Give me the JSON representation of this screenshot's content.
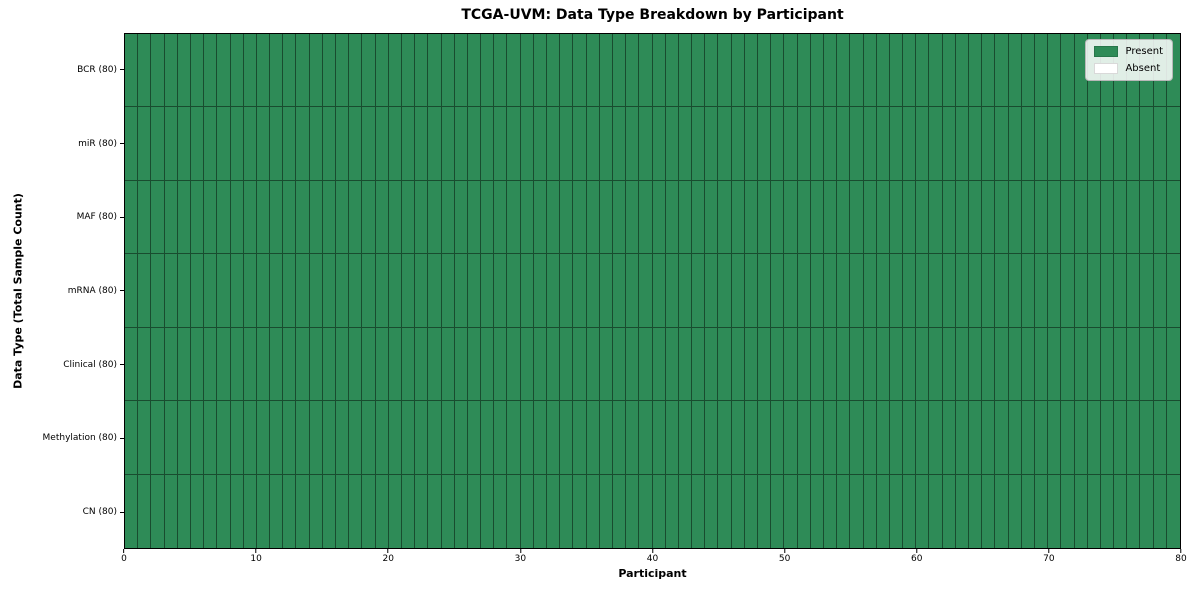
{
  "chart_data": {
    "type": "heatmap",
    "title": "TCGA-UVM: Data Type Breakdown by Participant",
    "xlabel": "Participant",
    "ylabel": "Data Type (Total Sample Count)",
    "xlim": [
      0,
      80
    ],
    "x_ticks": [
      0,
      10,
      20,
      30,
      40,
      50,
      60,
      70,
      80
    ],
    "n_participants": 80,
    "rows": [
      {
        "label": "BCR (80)",
        "present_count": 80
      },
      {
        "label": "miR (80)",
        "present_count": 80
      },
      {
        "label": "MAF (80)",
        "present_count": 80
      },
      {
        "label": "mRNA (80)",
        "present_count": 80
      },
      {
        "label": "Clinical (80)",
        "present_count": 80
      },
      {
        "label": "Methylation (80)",
        "present_count": 80
      },
      {
        "label": "CN (80)",
        "present_count": 80
      }
    ],
    "legend": [
      {
        "label": "Present",
        "color": "#2e8b57"
      },
      {
        "label": "Absent",
        "color": "#ffffff"
      }
    ],
    "legend_position": "upper right",
    "colors": {
      "present": "#2e8b57",
      "absent": "#ffffff",
      "cell_border": "rgba(0,0,0,0.45)",
      "axis": "#000000"
    }
  }
}
